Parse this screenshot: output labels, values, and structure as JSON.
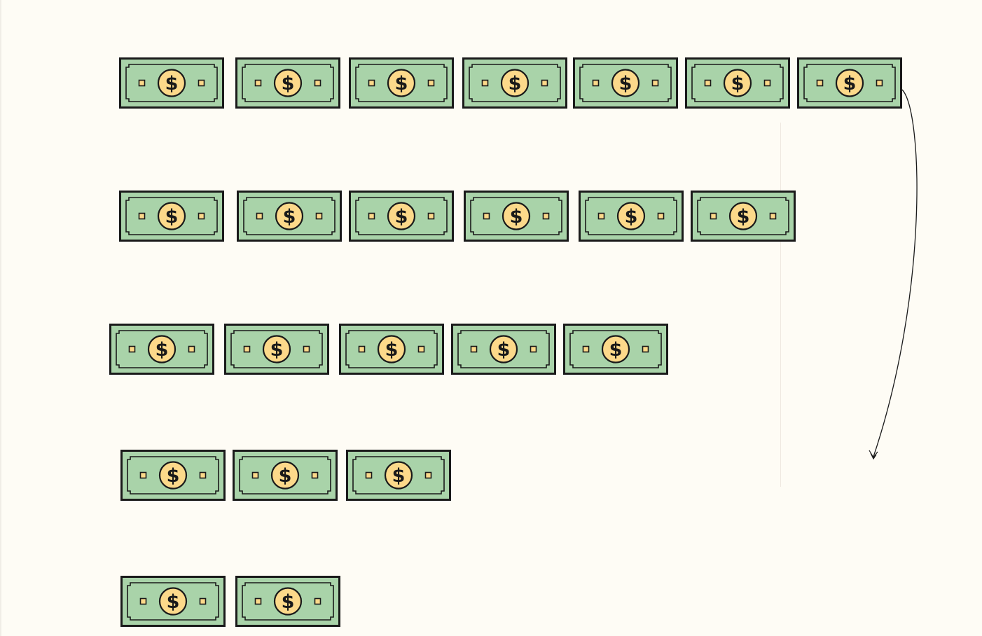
{
  "diagram": {
    "title": "",
    "colors": {
      "background": "#fefcf5",
      "bill_fill": "#a9d3a9",
      "bill_stroke": "#1a1a1a",
      "coin_fill": "#fcd98a",
      "arrow": "#1a1a1a"
    },
    "icon": "dollar-bill-icon",
    "rows": [
      {
        "name": "row-1",
        "bill_count": 7
      },
      {
        "name": "row-2",
        "bill_count": 6
      },
      {
        "name": "row-3",
        "bill_count": 5
      },
      {
        "name": "row-4",
        "bill_count": 3
      },
      {
        "name": "row-5",
        "bill_count": 2
      }
    ],
    "arrow": {
      "direction": "down",
      "from": "row-1",
      "label": ""
    }
  }
}
